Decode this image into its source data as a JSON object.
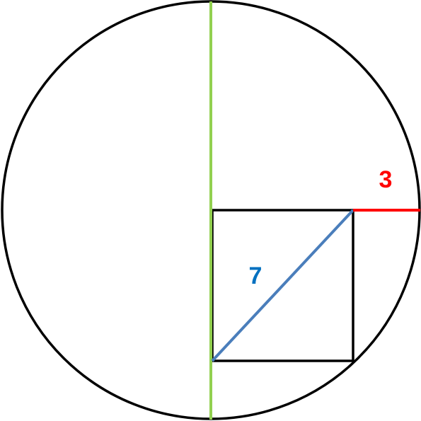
{
  "segments": [
    {
      "label": "3"
    },
    {
      "label": "7"
    }
  ]
}
